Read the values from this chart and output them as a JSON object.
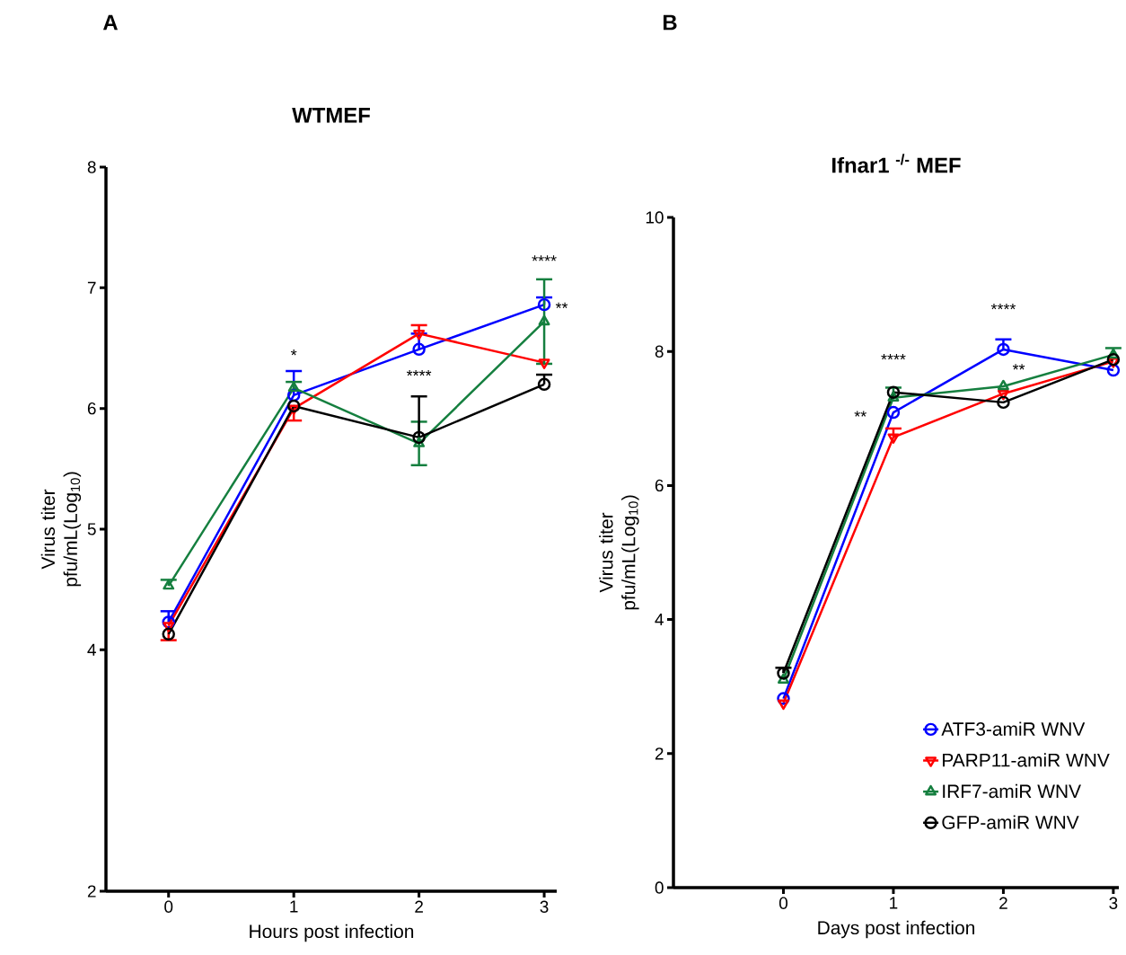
{
  "chart_data": [
    {
      "type": "line",
      "title": "WTMEF",
      "xlabel": "Hours post infection",
      "ylabel": "Virus titer pfu/mL(Log$_{10}$)",
      "xlim": [
        -0.5,
        3.1
      ],
      "xticks": [
        0,
        1,
        2,
        3
      ],
      "ylim": [
        2,
        8
      ],
      "yticks": [
        2,
        4,
        5,
        6,
        7,
        8
      ],
      "grid": false,
      "legend": false,
      "series": [
        {
          "color": "#0000ff",
          "marker": "circle",
          "x": [
            0,
            1,
            2,
            3
          ],
          "values": [
            4.23,
            6.11,
            6.49,
            6.86
          ],
          "errors": [
            [
              4.23,
              4.32
            ],
            [
              6.11,
              6.31
            ],
            [
              6.49,
              6.62
            ],
            [
              6.86,
              6.92
            ]
          ]
        },
        {
          "color": "#ff0000",
          "marker": "triangle-down",
          "x": [
            0,
            1,
            2,
            3
          ],
          "values": [
            4.2,
            6.0,
            6.62,
            6.38
          ],
          "errors": [
            [
              4.08,
              4.2
            ],
            [
              5.9,
              6.0
            ],
            [
              6.62,
              6.69
            ],
            null
          ]
        },
        {
          "color": "#157f3f",
          "marker": "triangle",
          "x": [
            0,
            1,
            2,
            3
          ],
          "values": [
            4.53,
            6.17,
            5.71,
            6.72
          ],
          "errors": [
            [
              4.53,
              4.58
            ],
            [
              6.17,
              6.22
            ],
            0.18,
            0.35
          ]
        },
        {
          "color": "#000000",
          "marker": "circle",
          "x": [
            0,
            1,
            2,
            3
          ],
          "values": [
            4.13,
            6.02,
            5.76,
            6.2
          ],
          "errors": [
            null,
            null,
            [
              5.76,
              6.1
            ],
            [
              6.2,
              6.28
            ]
          ]
        }
      ],
      "annotations": [
        "A",
        "*",
        "****",
        "****",
        "**"
      ]
    },
    {
      "type": "line",
      "title": "Ifnar1 $^{-/-}$ MEF",
      "xlabel": "Days post infection",
      "ylabel": "Virus titer pfu/mL(Log$_{10}$)",
      "xlim": [
        -1,
        3.05
      ],
      "xticks": [
        0,
        1,
        2,
        3
      ],
      "ylim": [
        0,
        10
      ],
      "yticks": [
        0,
        2,
        4,
        6,
        8,
        10
      ],
      "grid": false,
      "legend": "bottom right",
      "series": [
        {
          "name": "ATF3-amiR WNV",
          "color": "#0000ff",
          "marker": "circle",
          "x": [
            0,
            1,
            2,
            3
          ],
          "values": [
            2.82,
            7.09,
            8.03,
            7.72
          ],
          "errors": [
            null,
            null,
            [
              8.03,
              8.18
            ],
            null
          ]
        },
        {
          "name": "PARP11-amiR WNV",
          "color": "#ff0000",
          "marker": "triangle-down",
          "x": [
            0,
            1,
            2,
            3
          ],
          "values": [
            2.75,
            6.72,
            7.37,
            7.85
          ],
          "errors": [
            null,
            [
              6.72,
              6.85
            ],
            null,
            null
          ]
        },
        {
          "name": "IRF7-amiR WNV",
          "color": "#157f3f",
          "marker": "triangle",
          "x": [
            0,
            1,
            2,
            3
          ],
          "values": [
            3.1,
            7.31,
            7.48,
            7.95
          ],
          "errors": [
            null,
            [
              7.31,
              7.46
            ],
            null,
            [
              7.95,
              8.05
            ]
          ]
        },
        {
          "name": "GFP-amiR WNV",
          "color": "#000000",
          "marker": "circle",
          "x": [
            0,
            1,
            2,
            3
          ],
          "values": [
            3.2,
            7.39,
            7.24,
            7.88
          ],
          "errors": [
            [
              3.2,
              3.28
            ],
            null,
            null,
            null
          ]
        }
      ],
      "annotations": [
        "B",
        "**",
        "****",
        "****",
        "**"
      ]
    }
  ]
}
